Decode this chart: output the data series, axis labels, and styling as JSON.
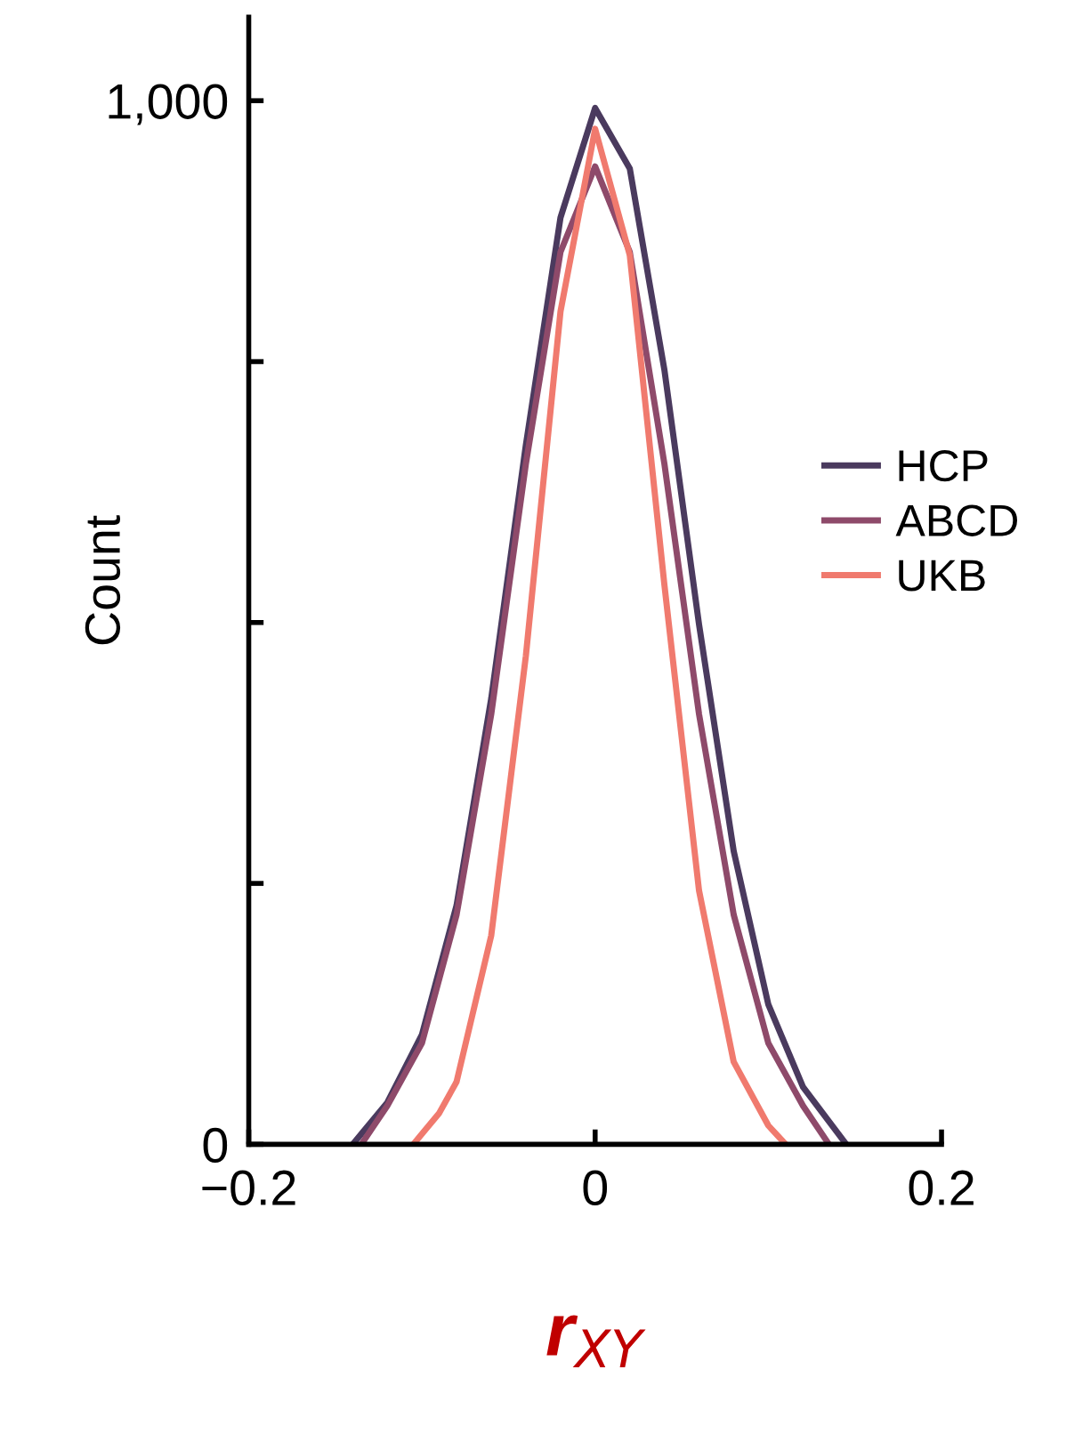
{
  "chart_data": {
    "type": "line",
    "xlabel": "r$_{XY}$",
    "ylabel": "Count",
    "xlim": [
      -0.2,
      0.2
    ],
    "ylim": [
      0,
      1080
    ],
    "xticks": [
      {
        "value": -0.2,
        "label": "−0.2"
      },
      0,
      0.2
    ],
    "yticks": [
      0,
      {
        "value": 250,
        "label": null
      },
      {
        "value": 500,
        "label": null
      },
      {
        "value": 750,
        "label": null
      },
      {
        "value": 1000,
        "label": "1,000"
      }
    ],
    "grid": false,
    "legend": "right",
    "marker": "none",
    "line_style": "solid",
    "series": [
      {
        "name": "HCP",
        "color": "#4a3a5e",
        "x": [
          -0.14,
          -0.12,
          -0.1,
          -0.08,
          -0.06,
          -0.04,
          -0.02,
          0,
          0.02,
          0.04,
          0.06,
          0.08,
          0.1,
          0.12,
          0.145
        ],
        "values": [
          0,
          40,
          105,
          229,
          427,
          670,
          888,
          993,
          935,
          742,
          498,
          281,
          134,
          55,
          0
        ]
      },
      {
        "name": "ABCD",
        "color": "#8e4a6a",
        "x": [
          -0.135,
          -0.12,
          -0.1,
          -0.08,
          -0.06,
          -0.04,
          -0.02,
          0,
          0.02,
          0.04,
          0.06,
          0.08,
          0.1,
          0.12,
          0.135
        ],
        "values": [
          0,
          37,
          97,
          220,
          412,
          652,
          855,
          937,
          855,
          652,
          412,
          220,
          97,
          37,
          0
        ]
      },
      {
        "name": "UKB",
        "color": "#f07a6e",
        "x": [
          -0.105,
          -0.09,
          -0.08,
          -0.06,
          -0.04,
          -0.02,
          0,
          0.02,
          0.04,
          0.06,
          0.08,
          0.1,
          0.11
        ],
        "values": [
          0,
          30,
          60,
          200,
          468,
          798,
          973,
          852,
          536,
          243,
          79,
          18,
          0
        ]
      }
    ]
  }
}
